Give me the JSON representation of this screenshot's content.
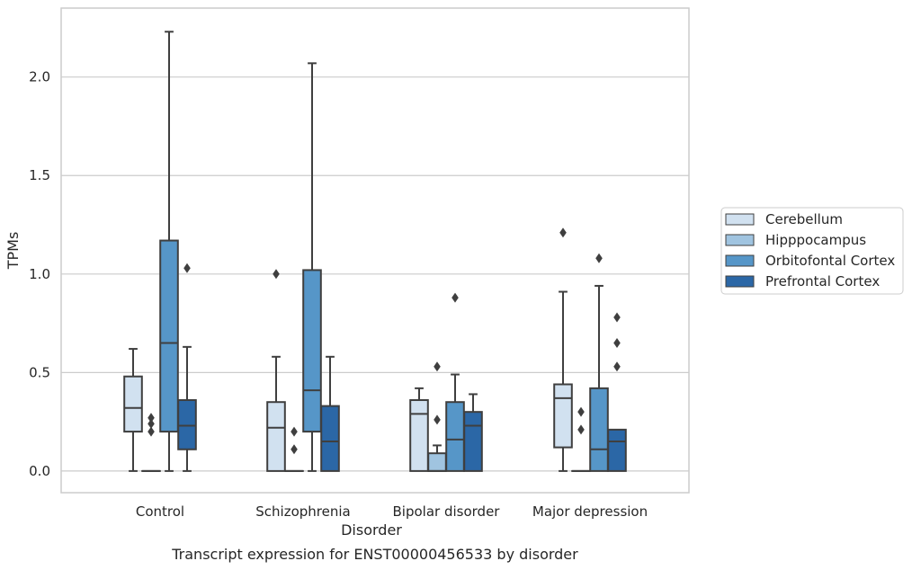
{
  "chart_data": {
    "type": "box",
    "title": "",
    "caption": "Transcript expression for ENST00000456533 by disorder",
    "xlabel": "Disorder",
    "ylabel": "TPMs",
    "ylim": [
      -0.11,
      2.35
    ],
    "yticks": [
      0.0,
      0.5,
      1.0,
      1.5,
      2.0
    ],
    "ytick_labels": [
      "0.0",
      "0.5",
      "1.0",
      "1.5",
      "2.0"
    ],
    "grid": "horizontal",
    "legend_position": "right",
    "categories": [
      "Control",
      "Schizophrenia",
      "Bipolar disorder",
      "Major depression"
    ],
    "series": [
      {
        "name": "Cerebellum",
        "color": "#d1e1f0",
        "boxes": [
          {
            "min": 0.0,
            "q1": 0.2,
            "median": 0.32,
            "q3": 0.48,
            "max": 0.62,
            "outliers": []
          },
          {
            "min": 0.0,
            "q1": 0.0,
            "median": 0.22,
            "q3": 0.35,
            "max": 0.58,
            "outliers": [
              1.0
            ]
          },
          {
            "min": 0.0,
            "q1": 0.0,
            "median": 0.29,
            "q3": 0.36,
            "max": 0.42,
            "outliers": []
          },
          {
            "min": 0.0,
            "q1": 0.12,
            "median": 0.37,
            "q3": 0.44,
            "max": 0.91,
            "outliers": [
              1.21
            ]
          }
        ]
      },
      {
        "name": "Hipppocampus",
        "color": "#a0c4e0",
        "boxes": [
          {
            "min": 0.0,
            "q1": 0.0,
            "median": 0.0,
            "q3": 0.0,
            "max": 0.0,
            "outliers": [
              0.2,
              0.24,
              0.27
            ]
          },
          {
            "min": 0.0,
            "q1": 0.0,
            "median": 0.0,
            "q3": 0.0,
            "max": 0.0,
            "outliers": [
              0.11,
              0.2
            ]
          },
          {
            "min": 0.0,
            "q1": 0.0,
            "median": 0.0,
            "q3": 0.09,
            "max": 0.13,
            "outliers": [
              0.26,
              0.53
            ]
          },
          {
            "min": 0.0,
            "q1": 0.0,
            "median": 0.0,
            "q3": 0.0,
            "max": 0.0,
            "outliers": [
              0.21,
              0.3
            ]
          }
        ]
      },
      {
        "name": "Orbitofontal Cortex",
        "color": "#5696c8",
        "boxes": [
          {
            "min": 0.0,
            "q1": 0.2,
            "median": 0.65,
            "q3": 1.17,
            "max": 2.23,
            "outliers": []
          },
          {
            "min": 0.0,
            "q1": 0.2,
            "median": 0.41,
            "q3": 1.02,
            "max": 2.07,
            "outliers": []
          },
          {
            "min": 0.0,
            "q1": 0.0,
            "median": 0.16,
            "q3": 0.35,
            "max": 0.49,
            "outliers": [
              0.88
            ]
          },
          {
            "min": 0.0,
            "q1": 0.0,
            "median": 0.11,
            "q3": 0.42,
            "max": 0.94,
            "outliers": [
              1.08
            ]
          }
        ]
      },
      {
        "name": "Prefrontal Cortex",
        "color": "#2b67a6",
        "boxes": [
          {
            "min": 0.0,
            "q1": 0.11,
            "median": 0.23,
            "q3": 0.36,
            "max": 0.63,
            "outliers": [
              1.03
            ]
          },
          {
            "min": 0.0,
            "q1": 0.0,
            "median": 0.15,
            "q3": 0.33,
            "max": 0.58,
            "outliers": []
          },
          {
            "min": 0.0,
            "q1": 0.0,
            "median": 0.23,
            "q3": 0.3,
            "max": 0.39,
            "outliers": []
          },
          {
            "min": 0.0,
            "q1": 0.0,
            "median": 0.15,
            "q3": 0.21,
            "max": 0.21,
            "outliers": [
              0.53,
              0.65,
              0.78
            ]
          }
        ]
      }
    ]
  }
}
